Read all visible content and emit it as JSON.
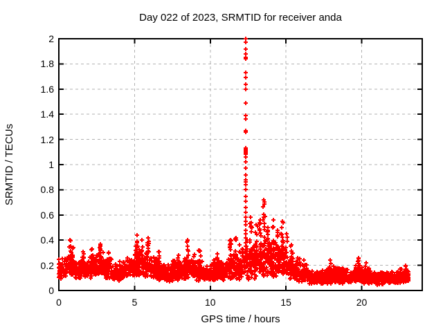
{
  "page": {
    "background": "#ffffff",
    "text_color": "#000000"
  },
  "chart_data": {
    "type": "scatter",
    "title": "Day 022 of 2023, SRMTID for receiver anda",
    "xlabel": "GPS time / hours",
    "ylabel": "SRMTID / TECUs",
    "xlim": [
      0,
      24
    ],
    "ylim": [
      0,
      2
    ],
    "xticks": [
      0,
      5,
      10,
      15,
      20
    ],
    "xtick_labels": [
      "0",
      "5",
      "10",
      "15",
      "20"
    ],
    "yticks": [
      0,
      0.2,
      0.4,
      0.6,
      0.8,
      1,
      1.2,
      1.4,
      1.6,
      1.8,
      2
    ],
    "ytick_labels": [
      "0",
      "0.2",
      "0.4",
      "0.6",
      "0.8",
      "1",
      "1.2",
      "1.4",
      "1.6",
      "1.8",
      "2"
    ],
    "grid": {
      "visible": true,
      "style": "dashed",
      "color": "#b0b0b0"
    },
    "border_color": "#000000",
    "legend": "none",
    "series": [
      {
        "name": "SRMTID",
        "marker": "plus",
        "marker_color": "#ff0000",
        "marker_size_px": 7,
        "spike_points": [
          [
            12.33,
            2.0
          ],
          [
            12.34,
            1.97
          ],
          [
            12.33,
            1.92
          ],
          [
            12.35,
            1.88
          ],
          [
            12.33,
            1.85
          ],
          [
            12.34,
            1.84
          ],
          [
            12.33,
            1.73
          ],
          [
            12.34,
            1.69
          ],
          [
            12.33,
            1.64
          ],
          [
            12.35,
            1.6
          ],
          [
            12.33,
            1.49
          ],
          [
            12.34,
            1.39
          ],
          [
            12.33,
            1.36
          ],
          [
            12.35,
            1.27
          ],
          [
            12.33,
            1.26
          ],
          [
            12.34,
            1.13
          ],
          [
            12.33,
            1.12
          ],
          [
            12.36,
            1.11
          ],
          [
            12.34,
            1.1
          ],
          [
            12.33,
            1.09
          ],
          [
            12.35,
            1.08
          ],
          [
            12.34,
            1.06
          ],
          [
            12.33,
            1.02
          ],
          [
            12.34,
            0.97
          ],
          [
            12.33,
            0.92
          ],
          [
            12.35,
            0.88
          ],
          [
            12.34,
            0.86
          ],
          [
            12.33,
            0.84
          ],
          [
            12.35,
            0.8
          ],
          [
            12.34,
            0.75
          ],
          [
            12.33,
            0.71
          ],
          [
            12.35,
            0.66
          ],
          [
            12.34,
            0.62
          ],
          [
            12.33,
            0.58
          ],
          [
            12.36,
            0.55
          ],
          [
            12.34,
            0.52
          ],
          [
            12.33,
            0.48
          ],
          [
            12.35,
            0.45
          ],
          [
            12.34,
            0.42
          ],
          [
            12.33,
            0.38
          ],
          [
            12.35,
            0.35
          ],
          [
            12.42,
            0.4
          ],
          [
            12.45,
            0.33
          ],
          [
            12.28,
            0.3
          ],
          [
            12.25,
            0.26
          ]
        ],
        "band_bins": [
          [
            0.0,
            0.5,
            0.09,
            0.27,
            55
          ],
          [
            0.5,
            1.0,
            0.11,
            0.3,
            60
          ],
          [
            1.0,
            1.5,
            0.09,
            0.26,
            55
          ],
          [
            1.5,
            2.0,
            0.1,
            0.28,
            55
          ],
          [
            2.0,
            2.5,
            0.1,
            0.3,
            55
          ],
          [
            2.5,
            3.0,
            0.11,
            0.32,
            55
          ],
          [
            3.0,
            3.5,
            0.09,
            0.28,
            50
          ],
          [
            3.5,
            4.0,
            0.07,
            0.22,
            50
          ],
          [
            4.0,
            4.5,
            0.08,
            0.24,
            55
          ],
          [
            4.5,
            5.0,
            0.1,
            0.28,
            55
          ],
          [
            5.0,
            5.5,
            0.11,
            0.34,
            60
          ],
          [
            5.5,
            6.0,
            0.1,
            0.32,
            55
          ],
          [
            6.0,
            6.5,
            0.09,
            0.28,
            55
          ],
          [
            6.5,
            7.0,
            0.08,
            0.25,
            55
          ],
          [
            7.0,
            7.5,
            0.07,
            0.22,
            50
          ],
          [
            7.5,
            8.0,
            0.08,
            0.25,
            55
          ],
          [
            8.0,
            8.5,
            0.09,
            0.28,
            55
          ],
          [
            8.5,
            9.0,
            0.09,
            0.3,
            55
          ],
          [
            9.0,
            9.5,
            0.07,
            0.25,
            50
          ],
          [
            9.5,
            10.0,
            0.06,
            0.2,
            50
          ],
          [
            10.0,
            10.5,
            0.08,
            0.25,
            55
          ],
          [
            10.5,
            11.0,
            0.08,
            0.26,
            55
          ],
          [
            11.0,
            11.5,
            0.09,
            0.3,
            55
          ],
          [
            11.5,
            12.0,
            0.08,
            0.3,
            50
          ],
          [
            12.0,
            12.3,
            0.09,
            0.3,
            28
          ],
          [
            12.35,
            12.6,
            0.08,
            0.4,
            25
          ],
          [
            12.6,
            13.0,
            0.08,
            0.42,
            40
          ],
          [
            13.0,
            13.5,
            0.1,
            0.42,
            48
          ],
          [
            13.5,
            14.0,
            0.1,
            0.45,
            52
          ],
          [
            14.0,
            14.5,
            0.1,
            0.42,
            52
          ],
          [
            14.5,
            15.0,
            0.1,
            0.42,
            52
          ],
          [
            15.0,
            15.5,
            0.09,
            0.33,
            50
          ],
          [
            15.5,
            16.0,
            0.07,
            0.27,
            50
          ],
          [
            16.0,
            16.5,
            0.06,
            0.21,
            55
          ],
          [
            16.5,
            17.0,
            0.05,
            0.17,
            55
          ],
          [
            17.0,
            17.5,
            0.05,
            0.17,
            55
          ],
          [
            17.5,
            18.0,
            0.05,
            0.19,
            55
          ],
          [
            18.0,
            18.5,
            0.06,
            0.21,
            55
          ],
          [
            18.5,
            19.0,
            0.05,
            0.19,
            55
          ],
          [
            19.0,
            19.5,
            0.05,
            0.17,
            55
          ],
          [
            19.5,
            20.0,
            0.06,
            0.21,
            55
          ],
          [
            20.0,
            20.5,
            0.05,
            0.19,
            55
          ],
          [
            20.5,
            21.0,
            0.05,
            0.17,
            55
          ],
          [
            21.0,
            21.5,
            0.04,
            0.15,
            50
          ],
          [
            21.5,
            22.0,
            0.05,
            0.17,
            55
          ],
          [
            22.0,
            22.5,
            0.05,
            0.16,
            55
          ],
          [
            22.5,
            23.1,
            0.06,
            0.18,
            60
          ]
        ],
        "bursts": [
          [
            0.75,
            0.2,
            0.4,
            12
          ],
          [
            0.95,
            0.18,
            0.34,
            8
          ],
          [
            1.6,
            0.18,
            0.31,
            8
          ],
          [
            2.2,
            0.18,
            0.33,
            8
          ],
          [
            2.75,
            0.2,
            0.37,
            10
          ],
          [
            3.3,
            0.15,
            0.3,
            7
          ],
          [
            5.15,
            0.2,
            0.44,
            12
          ],
          [
            5.5,
            0.2,
            0.4,
            10
          ],
          [
            5.9,
            0.18,
            0.42,
            10
          ],
          [
            6.6,
            0.15,
            0.31,
            8
          ],
          [
            7.9,
            0.14,
            0.28,
            6
          ],
          [
            8.5,
            0.18,
            0.4,
            10
          ],
          [
            9.3,
            0.15,
            0.32,
            8
          ],
          [
            10.45,
            0.14,
            0.29,
            7
          ],
          [
            11.35,
            0.18,
            0.4,
            10
          ],
          [
            11.7,
            0.15,
            0.42,
            10
          ],
          [
            11.95,
            0.14,
            0.36,
            8
          ],
          [
            12.12,
            0.12,
            0.33,
            7
          ],
          [
            12.68,
            0.15,
            0.58,
            12
          ],
          [
            13.05,
            0.15,
            0.52,
            10
          ],
          [
            13.3,
            0.15,
            0.56,
            10
          ],
          [
            13.55,
            0.18,
            0.72,
            16
          ],
          [
            13.8,
            0.15,
            0.5,
            10
          ],
          [
            14.15,
            0.15,
            0.56,
            12
          ],
          [
            14.45,
            0.15,
            0.48,
            10
          ],
          [
            14.75,
            0.15,
            0.55,
            14
          ],
          [
            15.05,
            0.12,
            0.45,
            10
          ],
          [
            15.35,
            0.12,
            0.36,
            8
          ],
          [
            16.2,
            0.08,
            0.24,
            6
          ],
          [
            17.9,
            0.08,
            0.24,
            6
          ],
          [
            19.8,
            0.09,
            0.26,
            6
          ],
          [
            20.3,
            0.08,
            0.22,
            5
          ],
          [
            22.9,
            0.07,
            0.2,
            6
          ]
        ]
      }
    ]
  }
}
